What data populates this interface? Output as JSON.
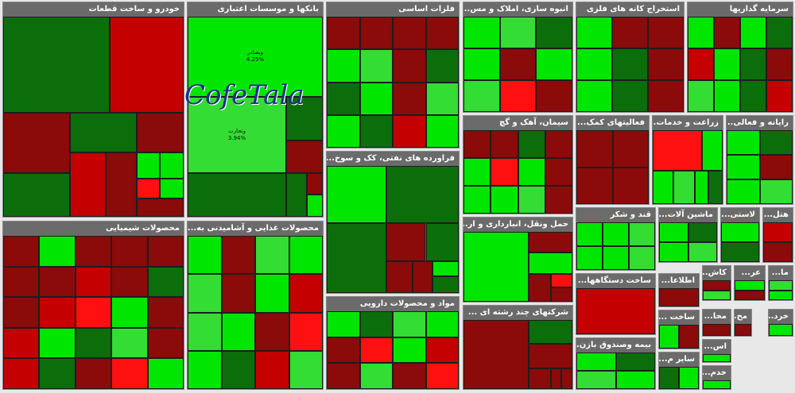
{
  "watermark": "CofeTala",
  "sectors": [
    {
      "title": "خودرو و ساخت قطعات",
      "tiles": [
        {
          "color": "#0b6e0b"
        },
        {
          "color": "#c40000"
        },
        {
          "color": "#8b0a0a"
        },
        {
          "color": "#0b6e0b"
        },
        {
          "color": "#0b6e0b"
        },
        {
          "color": "#8b0a0a"
        },
        {
          "color": "#c40000"
        },
        {
          "color": "#8b0a0a"
        },
        {
          "color": "#00e600"
        },
        {
          "color": "#00e600"
        },
        {
          "color": "#ff1010"
        },
        {
          "color": "#00e600"
        },
        {
          "color": "#8b0a0a"
        }
      ]
    },
    {
      "title": "بانکها و موسسات اعتباری",
      "tiles": [
        {
          "color": "#00e600",
          "label": "وبصادر",
          "pct": "4.25%"
        },
        {
          "color": "#33dd33",
          "label": "وتجارت",
          "pct": "3.94%"
        },
        {
          "color": "#0b6e0b"
        },
        {
          "color": "#8b0a0a"
        },
        {
          "color": "#0b6e0b"
        },
        {
          "color": "#0b6e0b"
        },
        {
          "color": "#8b0a0a"
        },
        {
          "color": "#00e600"
        }
      ]
    },
    {
      "title": "فلزات اساسی",
      "tiles": [
        {
          "color": "#8b0a0a"
        },
        {
          "color": "#8b0a0a"
        },
        {
          "color": "#8b0a0a"
        },
        {
          "color": "#8b0a0a"
        },
        {
          "color": "#00e600"
        },
        {
          "color": "#33dd33"
        },
        {
          "color": "#8b0a0a"
        },
        {
          "color": "#0b6e0b"
        },
        {
          "color": "#0b6e0b"
        },
        {
          "color": "#00e600"
        },
        {
          "color": "#8b0a0a"
        },
        {
          "color": "#33dd33"
        },
        {
          "color": "#00e600"
        },
        {
          "color": "#0b6e0b"
        },
        {
          "color": "#c40000"
        },
        {
          "color": "#00e600"
        }
      ]
    },
    {
      "title": "انبوه سازی، املاک و مس...",
      "tiles": [
        {
          "color": "#00e600"
        },
        {
          "color": "#33dd33"
        },
        {
          "color": "#0b6e0b"
        },
        {
          "color": "#00e600"
        },
        {
          "color": "#8b0a0a"
        },
        {
          "color": "#00e600"
        },
        {
          "color": "#33dd33"
        },
        {
          "color": "#ff1010"
        },
        {
          "color": "#8b0a0a"
        }
      ]
    },
    {
      "title": "استخراج کانه های فلزی",
      "tiles": [
        {
          "color": "#00e600"
        },
        {
          "color": "#8b0a0a"
        },
        {
          "color": "#8b0a0a"
        },
        {
          "color": "#00e600"
        },
        {
          "color": "#0b6e0b"
        },
        {
          "color": "#8b0a0a"
        },
        {
          "color": "#00e600"
        },
        {
          "color": "#0b6e0b"
        },
        {
          "color": "#8b0a0a"
        }
      ]
    },
    {
      "title": "سرمایه گذاریها",
      "tiles": [
        {
          "color": "#00e600"
        },
        {
          "color": "#8b0a0a"
        },
        {
          "color": "#00e600"
        },
        {
          "color": "#0b6e0b"
        },
        {
          "color": "#c40000"
        },
        {
          "color": "#00e600"
        },
        {
          "color": "#0b6e0b"
        },
        {
          "color": "#8b0a0a"
        },
        {
          "color": "#33dd33"
        },
        {
          "color": "#00e600"
        },
        {
          "color": "#0b6e0b"
        },
        {
          "color": "#c40000"
        }
      ]
    },
    {
      "title": "محصولات شیمیایی",
      "tiles": [
        {
          "color": "#8b0a0a"
        },
        {
          "color": "#00e600"
        },
        {
          "color": "#8b0a0a"
        },
        {
          "color": "#8b0a0a"
        },
        {
          "color": "#8b0a0a"
        },
        {
          "color": "#8b0a0a"
        },
        {
          "color": "#8b0a0a"
        },
        {
          "color": "#c40000"
        },
        {
          "color": "#8b0a0a"
        },
        {
          "color": "#0b6e0b"
        },
        {
          "color": "#8b0a0a"
        },
        {
          "color": "#c40000"
        },
        {
          "color": "#ff1010"
        },
        {
          "color": "#00e600"
        },
        {
          "color": "#8b0a0a"
        },
        {
          "color": "#c40000"
        },
        {
          "color": "#00e600"
        },
        {
          "color": "#0b6e0b"
        },
        {
          "color": "#33dd33"
        },
        {
          "color": "#8b0a0a"
        },
        {
          "color": "#c40000"
        },
        {
          "color": "#0b6e0b"
        },
        {
          "color": "#8b0a0a"
        },
        {
          "color": "#ff1010"
        },
        {
          "color": "#00e600"
        }
      ]
    },
    {
      "title": "محصولات غذایی و آشامیدنی به...",
      "tiles": [
        {
          "color": "#00e600"
        },
        {
          "color": "#8b0a0a"
        },
        {
          "color": "#33dd33"
        },
        {
          "color": "#00e600"
        },
        {
          "color": "#33dd33"
        },
        {
          "color": "#8b0a0a"
        },
        {
          "color": "#00e600"
        },
        {
          "color": "#c40000"
        },
        {
          "color": "#33dd33"
        },
        {
          "color": "#00e600"
        },
        {
          "color": "#8b0a0a"
        },
        {
          "color": "#ff1010"
        },
        {
          "color": "#00e600"
        },
        {
          "color": "#0b6e0b"
        },
        {
          "color": "#c40000"
        },
        {
          "color": "#33dd33"
        }
      ]
    },
    {
      "title": "فراورده های نفتی، کک و سوخ...",
      "tiles": [
        {
          "color": "#00e600"
        },
        {
          "color": "#0b6e0b"
        },
        {
          "color": "#0b6e0b"
        },
        {
          "color": "#8b0a0a"
        },
        {
          "color": "#0b6e0b"
        },
        {
          "color": "#8b0a0a"
        },
        {
          "color": "#8b0a0a"
        },
        {
          "color": "#00e600"
        },
        {
          "color": "#0b6e0b"
        }
      ]
    },
    {
      "title": "مواد و محصولات دارویی",
      "tiles": [
        {
          "color": "#00e600"
        },
        {
          "color": "#0b6e0b"
        },
        {
          "color": "#33dd33"
        },
        {
          "color": "#00e600"
        },
        {
          "color": "#8b0a0a"
        },
        {
          "color": "#ff1010"
        },
        {
          "color": "#00e600"
        },
        {
          "color": "#c40000"
        },
        {
          "color": "#8b0a0a"
        },
        {
          "color": "#33dd33"
        },
        {
          "color": "#8b0a0a"
        },
        {
          "color": "#ff1010"
        }
      ]
    },
    {
      "title": "سیمان، آهک و گچ",
      "tiles": [
        {
          "color": "#8b0a0a"
        },
        {
          "color": "#8b0a0a"
        },
        {
          "color": "#0b6e0b"
        },
        {
          "color": "#8b0a0a"
        },
        {
          "color": "#00e600"
        },
        {
          "color": "#ff1010"
        },
        {
          "color": "#00e600"
        },
        {
          "color": "#8b0a0a"
        },
        {
          "color": "#00e600"
        },
        {
          "color": "#00e600"
        },
        {
          "color": "#33dd33"
        },
        {
          "color": "#8b0a0a"
        }
      ]
    },
    {
      "title": "حمل ونقل، انبارداری و ار...",
      "tiles": [
        {
          "color": "#00e600"
        },
        {
          "color": "#8b0a0a"
        },
        {
          "color": "#00e600"
        },
        {
          "color": "#8b0a0a"
        },
        {
          "color": "#ff1010"
        },
        {
          "color": "#8b0a0a"
        }
      ]
    },
    {
      "title": "شرکتهای چند رشته ای ...",
      "tiles": [
        {
          "color": "#8b0a0a"
        },
        {
          "color": "#0b6e0b"
        },
        {
          "color": "#8b0a0a"
        },
        {
          "color": "#8b0a0a"
        },
        {
          "color": "#8b0a0a"
        },
        {
          "color": "#8b0a0a"
        }
      ]
    },
    {
      "title": "فعالیتهای کمک...",
      "tiles": [
        {
          "color": "#8b0a0a"
        },
        {
          "color": "#8b0a0a"
        },
        {
          "color": "#8b0a0a"
        },
        {
          "color": "#8b0a0a"
        }
      ]
    },
    {
      "title": "زراعت و خدمات...",
      "tiles": [
        {
          "color": "#ff1010"
        },
        {
          "color": "#00e600"
        },
        {
          "color": "#00e600"
        },
        {
          "color": "#33dd33"
        },
        {
          "color": "#00e600"
        },
        {
          "color": "#0b6e0b"
        }
      ]
    },
    {
      "title": "رایانه و فعالی...",
      "tiles": [
        {
          "color": "#00e600"
        },
        {
          "color": "#0b6e0b"
        },
        {
          "color": "#00e600"
        },
        {
          "color": "#8b0a0a"
        },
        {
          "color": "#00e600"
        },
        {
          "color": "#33dd33"
        }
      ]
    },
    {
      "title": "قند و شکر",
      "tiles": [
        {
          "color": "#00e600"
        },
        {
          "color": "#00e600"
        },
        {
          "color": "#33dd33"
        },
        {
          "color": "#00e600"
        },
        {
          "color": "#00e600"
        },
        {
          "color": "#33dd33"
        }
      ]
    },
    {
      "title": "ماشین آلات...",
      "tiles": [
        {
          "color": "#00e600"
        },
        {
          "color": "#0b6e0b"
        },
        {
          "color": "#00e600"
        },
        {
          "color": "#33dd33"
        }
      ]
    },
    {
      "title": "لاستی...",
      "tiles": [
        {
          "color": "#00e600"
        },
        {
          "color": "#0b6e0b"
        }
      ]
    },
    {
      "title": "هتل...",
      "tiles": [
        {
          "color": "#c40000"
        },
        {
          "color": "#8b0a0a"
        }
      ]
    },
    {
      "title": "ساخت دستگاهها...",
      "tiles": [
        {
          "color": "#c40000"
        }
      ]
    },
    {
      "title": "بیمه وصندوق بازن...",
      "tiles": [
        {
          "color": "#00e600"
        },
        {
          "color": "#0b6e0b"
        },
        {
          "color": "#33dd33"
        },
        {
          "color": "#00e600"
        }
      ]
    },
    {
      "title": "اطلاعا...",
      "tiles": [
        {
          "color": "#8b0a0a"
        }
      ]
    },
    {
      "title": "ساخت ...",
      "tiles": [
        {
          "color": "#00e600"
        },
        {
          "color": "#8b0a0a"
        }
      ]
    },
    {
      "title": "سایر م...",
      "tiles": [
        {
          "color": "#0b6e0b"
        },
        {
          "color": "#00e600"
        }
      ]
    },
    {
      "title": "کاش...",
      "tiles": [
        {
          "color": "#8b0a0a"
        },
        {
          "color": "#33dd33"
        }
      ]
    },
    {
      "title": "عر...",
      "tiles": [
        {
          "color": "#00e600"
        },
        {
          "color": "#8b0a0a"
        }
      ]
    },
    {
      "title": "ما...",
      "tiles": [
        {
          "color": "#33dd33"
        },
        {
          "color": "#00e600"
        }
      ]
    },
    {
      "title": "محا...",
      "tiles": [
        {
          "color": "#8b0a0a"
        }
      ]
    },
    {
      "title": "مح...",
      "tiles": [
        {
          "color": "#8b0a0a"
        }
      ]
    },
    {
      "title": "خرد...",
      "tiles": [
        {
          "color": "#00e600"
        }
      ]
    },
    {
      "title": "اس...",
      "tiles": [
        {
          "color": "#00e600"
        }
      ]
    },
    {
      "title": "خدم...",
      "tiles": [
        {
          "color": "#00e600"
        }
      ]
    }
  ]
}
